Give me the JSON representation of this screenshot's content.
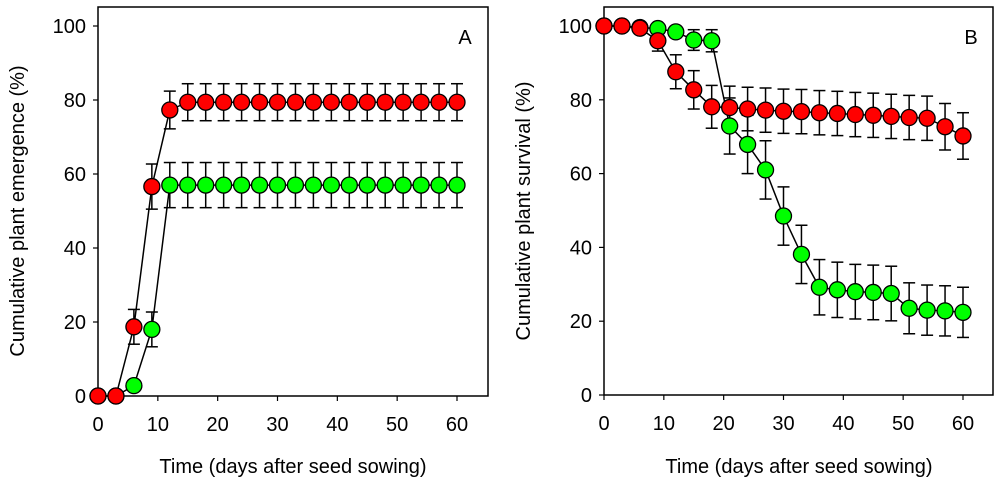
{
  "chart_data": [
    {
      "type": "scatter",
      "panel_label": "A",
      "title": "",
      "xlabel": "Time (days after seed sowing)",
      "ylabel": "Cumulative plant emergence (%)",
      "xlim": [
        0,
        60
      ],
      "ylim": [
        0,
        100
      ],
      "xticks": [
        0,
        10,
        20,
        30,
        40,
        50,
        60
      ],
      "yticks": [
        0,
        20,
        40,
        60,
        80,
        100
      ],
      "grid": false,
      "legend": null,
      "series": [
        {
          "name": "green series",
          "color": "#00ff00",
          "x": [
            0,
            3,
            6,
            9,
            12,
            15,
            18,
            21,
            24,
            27,
            30,
            33,
            36,
            39,
            42,
            45,
            48,
            51,
            54,
            57,
            60
          ],
          "values": [
            0,
            0,
            2.8,
            18.0,
            57.0,
            57.0,
            57.0,
            57.0,
            57.0,
            57.0,
            57.0,
            57.0,
            57.0,
            57.0,
            57.0,
            57.0,
            57.0,
            57.0,
            57.0,
            57.0,
            57.0
          ],
          "error": [
            0,
            0,
            0,
            4.7,
            6.1,
            6.1,
            6.1,
            6.1,
            6.1,
            6.1,
            6.1,
            6.1,
            6.1,
            6.1,
            6.1,
            6.1,
            6.1,
            6.1,
            6.1,
            6.1,
            6.1
          ]
        },
        {
          "name": "red series",
          "color": "#ff0000",
          "x": [
            0,
            3,
            6,
            9,
            12,
            15,
            18,
            21,
            24,
            27,
            30,
            33,
            36,
            39,
            42,
            45,
            48,
            51,
            54,
            57,
            60
          ],
          "values": [
            0,
            0,
            18.7,
            56.6,
            77.3,
            79.4,
            79.4,
            79.4,
            79.4,
            79.4,
            79.4,
            79.4,
            79.4,
            79.4,
            79.4,
            79.4,
            79.4,
            79.4,
            79.4,
            79.4,
            79.4
          ],
          "error": [
            0,
            0,
            4.7,
            6.1,
            5.1,
            5.0,
            5.0,
            5.0,
            5.0,
            5.0,
            5.0,
            5.0,
            5.0,
            5.0,
            5.0,
            5.0,
            5.0,
            5.0,
            5.0,
            5.0,
            5.0
          ]
        }
      ]
    },
    {
      "type": "scatter",
      "panel_label": "B",
      "title": "",
      "xlabel": "Time (days after seed sowing)",
      "ylabel": "Cumulative plant survival (%)",
      "xlim": [
        0,
        60
      ],
      "ylim": [
        0,
        100
      ],
      "xticks": [
        0,
        10,
        20,
        30,
        40,
        50,
        60
      ],
      "yticks": [
        0,
        20,
        40,
        60,
        80,
        100
      ],
      "grid": false,
      "legend": null,
      "series": [
        {
          "name": "green series",
          "color": "#00ff00",
          "x": [
            0,
            3,
            6,
            9,
            12,
            15,
            18,
            21,
            24,
            27,
            30,
            33,
            36,
            39,
            42,
            45,
            48,
            51,
            54,
            57,
            60
          ],
          "values": [
            100,
            100,
            99.6,
            99.3,
            98.4,
            96.2,
            96.0,
            72.9,
            67.9,
            61.0,
            48.5,
            38.1,
            29.2,
            28.5,
            28.0,
            27.8,
            27.5,
            23.5,
            23.0,
            22.8,
            22.4
          ],
          "error": [
            0,
            0,
            0,
            0.8,
            1.5,
            2.8,
            3.0,
            7.6,
            7.9,
            7.9,
            7.9,
            7.9,
            7.5,
            7.5,
            7.4,
            7.4,
            7.4,
            6.9,
            6.8,
            6.8,
            6.8
          ]
        },
        {
          "name": "red series",
          "color": "#ff0000",
          "x": [
            0,
            3,
            6,
            9,
            12,
            15,
            18,
            21,
            24,
            27,
            30,
            33,
            36,
            39,
            42,
            45,
            48,
            51,
            54,
            57,
            60
          ],
          "values": [
            100,
            100,
            99.4,
            96.0,
            87.6,
            82.7,
            78.1,
            77.9,
            77.5,
            77.2,
            76.9,
            76.8,
            76.5,
            76.3,
            76.0,
            75.8,
            75.5,
            75.2,
            75.0,
            72.7,
            70.2
          ],
          "error": [
            0,
            0,
            0,
            2.8,
            4.6,
            5.2,
            5.8,
            5.8,
            5.9,
            6.0,
            6.0,
            6.0,
            6.0,
            6.0,
            6.0,
            6.0,
            6.0,
            6.0,
            6.0,
            6.3,
            6.3
          ]
        }
      ]
    }
  ]
}
